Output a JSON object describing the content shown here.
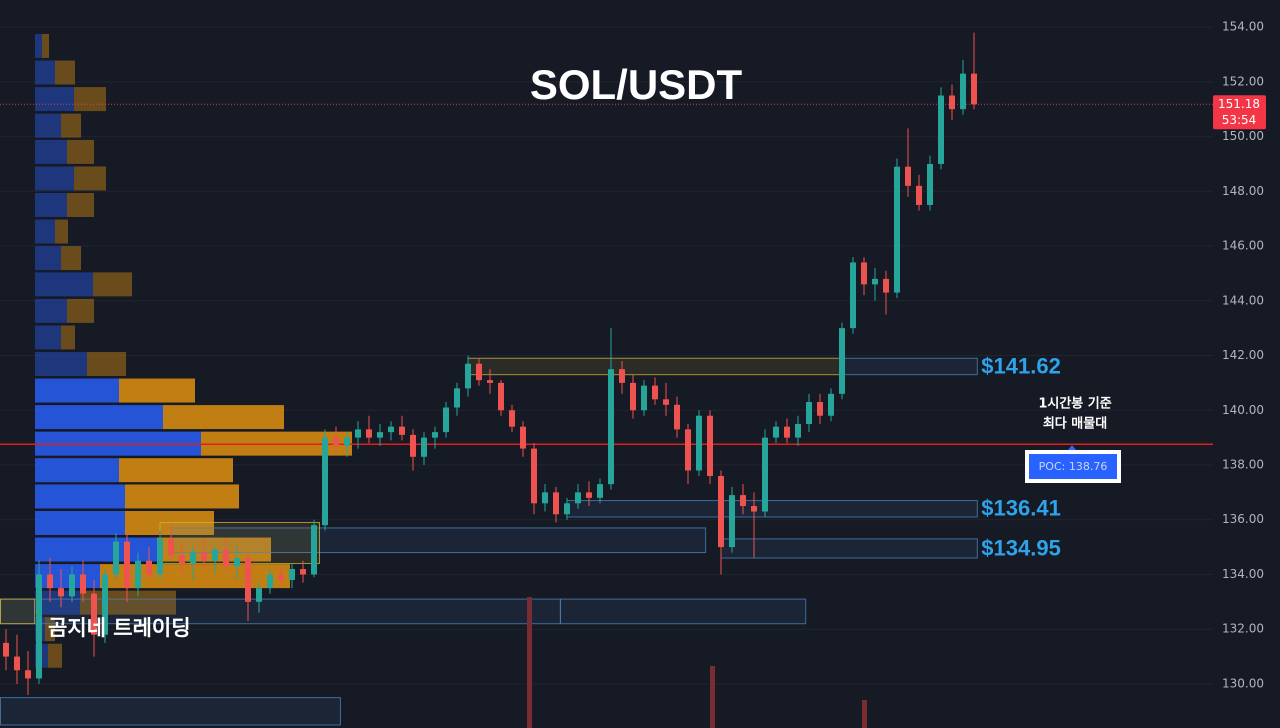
{
  "chart_data": {
    "type": "candlestick",
    "title": "SOL/USDT",
    "watermark": "곰지네 트레이딩",
    "ylim": [
      128.39,
      154.99
    ],
    "yticks": [
      {
        "value": 130,
        "label": "130.00"
      },
      {
        "value": 132,
        "label": "132.00"
      },
      {
        "value": 134,
        "label": "134.00"
      },
      {
        "value": 136,
        "label": "136.00"
      },
      {
        "value": 138,
        "label": "138.00"
      },
      {
        "value": 140,
        "label": "140.00"
      },
      {
        "value": 142,
        "label": "142.00"
      },
      {
        "value": 144,
        "label": "144.00"
      },
      {
        "value": 146,
        "label": "146.00"
      },
      {
        "value": 148,
        "label": "148.00"
      },
      {
        "value": 150,
        "label": "150.00"
      },
      {
        "value": 152,
        "label": "152.00"
      },
      {
        "value": 154,
        "label": "154.00"
      }
    ],
    "grid": true,
    "up_color": "#26a69a",
    "down_color": "#ef5350",
    "candles": {
      "open": [
        131.5,
        131,
        130.5,
        130.2,
        134,
        133.5,
        133.2,
        134,
        133.3,
        131.8,
        134,
        135.2,
        133.5,
        134.5,
        134,
        135.3,
        134.7,
        134.4,
        134.8,
        134.5,
        134.9,
        134.3,
        134.6,
        133,
        133.5,
        134,
        133.8,
        134.2,
        134,
        135.8,
        139,
        138.7,
        139,
        139.3,
        139,
        139.2,
        139.4,
        139.1,
        138.3,
        139,
        139.2,
        140.1,
        140.8,
        141.7,
        141.1,
        141,
        140,
        139.4,
        138.6,
        136.6,
        137,
        136.2,
        136.6,
        137,
        136.8,
        137.3,
        141.5,
        141,
        140,
        140.9,
        140.4,
        140.2,
        139.3,
        137.8,
        139.8,
        137.6,
        135,
        136.9,
        136.5,
        136.3,
        139,
        139.4,
        139,
        139.5,
        140.3,
        139.8,
        140.6,
        143,
        145.4,
        144.6,
        144.8,
        144.3,
        148.9,
        148.2,
        147.5,
        149,
        151.5,
        151,
        152.3
      ],
      "high": [
        132,
        131.8,
        131.2,
        134.5,
        134.6,
        134.2,
        134.3,
        134.5,
        133.8,
        134.2,
        135.5,
        135.5,
        134.8,
        135,
        135.6,
        135.8,
        135.2,
        135,
        135.3,
        135,
        135.3,
        135,
        134.8,
        133.7,
        134.2,
        134.3,
        134.4,
        134.5,
        136,
        139.3,
        139.4,
        139.2,
        139.6,
        139.8,
        139.5,
        139.6,
        139.8,
        139.3,
        139.2,
        139.4,
        140.3,
        141,
        142,
        141.9,
        141.5,
        141.1,
        140.2,
        139.6,
        138.8,
        137.3,
        137.2,
        136.8,
        137.3,
        137.4,
        137.5,
        143,
        141.8,
        141.3,
        141.1,
        141.2,
        141,
        140.5,
        139.5,
        140,
        140,
        137.8,
        137.2,
        137.3,
        137,
        139.3,
        139.6,
        139.7,
        139.8,
        140.6,
        140.6,
        140.8,
        143.2,
        145.6,
        145.6,
        145.2,
        145.1,
        149.2,
        150.3,
        148.6,
        149.3,
        151.8,
        151.9,
        152.8,
        153.8
      ],
      "low": [
        130.5,
        130,
        129.6,
        130,
        133,
        132.8,
        133,
        133,
        131,
        131.5,
        133.8,
        133,
        133.2,
        133.8,
        133.8,
        134.5,
        134,
        133.8,
        134.2,
        134,
        134.1,
        133.8,
        132.3,
        132.6,
        133.3,
        133.6,
        133.5,
        133.7,
        133.9,
        135.6,
        138.4,
        138.3,
        138.6,
        138.8,
        138.7,
        138.9,
        138.9,
        137.8,
        138,
        138.6,
        139,
        139.8,
        140.5,
        140.9,
        140.6,
        139.8,
        139.2,
        138.3,
        136.2,
        136.3,
        135.9,
        136,
        136.4,
        136.5,
        136.6,
        137.1,
        140.6,
        139.7,
        139.8,
        140.2,
        139.8,
        139,
        137.3,
        137.6,
        137.3,
        134,
        134.8,
        136.2,
        134.6,
        136.1,
        138.8,
        138.8,
        138.7,
        139.2,
        139.5,
        139.6,
        140.4,
        142.8,
        144.2,
        144,
        143.5,
        144.1,
        147.8,
        147.3,
        147.3,
        148.8,
        150.6,
        150.8,
        151
      ],
      "close": [
        131,
        130.5,
        130.2,
        134,
        133.5,
        133.2,
        134,
        133.3,
        131.8,
        134,
        135.2,
        133.5,
        134.5,
        134,
        135.3,
        134.7,
        134.4,
        134.8,
        134.5,
        134.9,
        134.3,
        134.6,
        133,
        133.5,
        134,
        133.8,
        134.2,
        134,
        135.8,
        139,
        138.7,
        139,
        139.3,
        139,
        139.2,
        139.4,
        139.1,
        138.3,
        139,
        139.2,
        140.1,
        140.8,
        141.7,
        141.1,
        141,
        140,
        139.4,
        138.6,
        136.6,
        137,
        136.2,
        136.6,
        137,
        136.8,
        137.3,
        141.5,
        141,
        140,
        140.9,
        140.4,
        140.2,
        139.3,
        137.8,
        139.8,
        137.6,
        135,
        136.9,
        136.5,
        136.3,
        139,
        139.4,
        139,
        139.5,
        140.3,
        139.8,
        140.6,
        143,
        145.4,
        144.6,
        144.8,
        144.3,
        148.9,
        148.2,
        147.5,
        149,
        151.5,
        151,
        152.3,
        151.18
      ]
    },
    "volume_profile": {
      "buy_color": "#2962ff",
      "sell_color": "#e69510",
      "value_area": [
        133.94,
        140.72
      ],
      "levels": [
        153.31,
        152.34,
        151.37,
        150.4,
        149.44,
        148.47,
        147.5,
        146.53,
        145.56,
        144.6,
        143.63,
        142.66,
        141.69,
        140.72,
        139.75,
        138.78,
        137.81,
        136.85,
        135.88,
        134.91,
        133.94,
        132.97,
        132.0,
        131.03
      ],
      "buy": [
        7,
        20,
        39,
        26,
        32,
        39,
        32,
        20,
        26,
        58,
        32,
        26,
        52,
        84,
        128,
        166,
        84,
        90,
        90,
        122,
        65,
        45,
        10,
        13
      ],
      "sell": [
        7,
        20,
        32,
        20,
        27,
        32,
        27,
        13,
        20,
        39,
        27,
        14,
        39,
        76,
        121,
        151,
        114,
        114,
        89,
        114,
        190,
        96,
        10,
        14
      ]
    },
    "zones": [
      {
        "top": 141.9,
        "bottom": 141.3,
        "from": 42,
        "to": 76,
        "color": "#c9b037"
      },
      {
        "top": 141.9,
        "bottom": 141.3,
        "from": 76,
        "to": 88.3,
        "color": "#4a7fb8",
        "label": "$141.62"
      },
      {
        "top": 136.7,
        "bottom": 136.1,
        "from": 51,
        "to": 88.3,
        "color": "#4a7fb8",
        "label": "$136.41"
      },
      {
        "top": 135.3,
        "bottom": 134.6,
        "from": 65,
        "to": 88.3,
        "color": "#4a7fb8",
        "label": "$134.95"
      },
      {
        "top": 135.7,
        "bottom": 134.8,
        "from": 15,
        "to": 63.6,
        "color": "#4a7fb8"
      },
      {
        "top": 135.9,
        "bottom": 134.4,
        "from": 14,
        "to": 28.5,
        "color": "#c9b037"
      },
      {
        "top": 133.1,
        "bottom": 132.2,
        "from": -0.5,
        "to": 50.4,
        "color": "#4a7fb8"
      },
      {
        "top": 133.1,
        "bottom": 132.2,
        "from": 50.4,
        "to": 72.7,
        "color": "#4a7fb8"
      },
      {
        "top": 133.1,
        "bottom": 132.2,
        "from": -0.5,
        "to": 2.6,
        "color": "#c9b037"
      },
      {
        "top": 129.5,
        "bottom": 128.5,
        "from": -0.5,
        "to": 30.4,
        "color": "#4a7fb8"
      }
    ],
    "poc": {
      "value": 138.76,
      "label": "POC: 138.76",
      "color": "#e01e1e"
    },
    "poc_note": [
      "1시간봉 기준",
      "최다 매물대"
    ],
    "last_price": 151.18,
    "countdown": "53:54"
  }
}
